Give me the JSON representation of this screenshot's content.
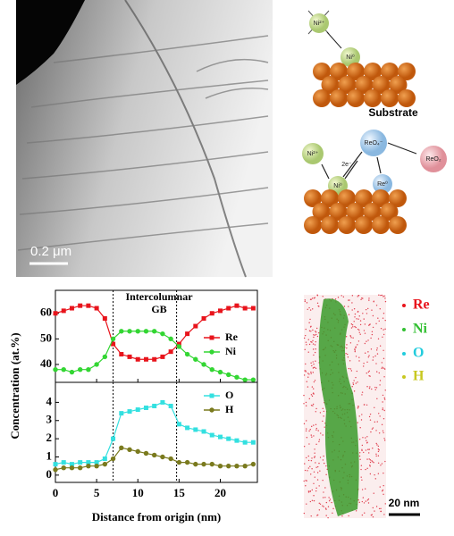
{
  "chart_data": [
    {
      "type": "line",
      "annotation": "Intercolumnar GB",
      "ylabel": "Concentration (at.%)",
      "x": [
        0,
        1,
        2,
        3,
        4,
        5,
        6,
        7,
        8,
        9,
        10,
        11,
        12,
        13,
        14,
        15,
        16,
        17,
        18,
        19,
        20,
        21,
        22,
        23,
        24
      ],
      "series": [
        {
          "name": "Re",
          "color": "#e8141c",
          "marker": "square",
          "values": [
            60,
            61,
            62,
            63,
            63,
            62,
            58,
            48,
            44,
            43,
            42,
            42,
            42,
            43,
            45,
            48,
            52,
            55,
            58,
            60,
            61,
            62,
            63,
            62,
            62
          ]
        },
        {
          "name": "Ni",
          "color": "#33d633",
          "marker": "circle",
          "values": [
            38,
            38,
            37,
            38,
            38,
            40,
            43,
            50,
            53,
            53,
            53,
            53,
            53,
            52,
            50,
            47,
            44,
            42,
            40,
            38,
            37,
            36,
            35,
            34,
            34
          ]
        }
      ],
      "xlim": [
        0,
        24.5
      ],
      "xticks": [
        0,
        5,
        10,
        15,
        20
      ],
      "ylim": [
        33,
        69
      ],
      "yticks": [
        40,
        50,
        60
      ],
      "vlines": [
        7,
        14.7
      ]
    },
    {
      "type": "line",
      "xlabel": "Distance from origin (nm)",
      "x": [
        0,
        1,
        2,
        3,
        4,
        5,
        6,
        7,
        8,
        9,
        10,
        11,
        12,
        13,
        14,
        15,
        16,
        17,
        18,
        19,
        20,
        21,
        22,
        23,
        24
      ],
      "series": [
        {
          "name": "O",
          "color": "#33e0e0",
          "marker": "square",
          "values": [
            0.6,
            0.7,
            0.6,
            0.7,
            0.7,
            0.7,
            0.9,
            2.0,
            3.4,
            3.5,
            3.6,
            3.7,
            3.8,
            4.0,
            3.8,
            2.8,
            2.6,
            2.5,
            2.4,
            2.2,
            2.1,
            2.0,
            1.9,
            1.8,
            1.8
          ]
        },
        {
          "name": "H",
          "color": "#7a7a1e",
          "marker": "circle",
          "values": [
            0.3,
            0.4,
            0.4,
            0.4,
            0.5,
            0.5,
            0.6,
            0.9,
            1.5,
            1.4,
            1.3,
            1.2,
            1.1,
            1.0,
            0.9,
            0.7,
            0.7,
            0.6,
            0.6,
            0.6,
            0.5,
            0.5,
            0.5,
            0.5,
            0.6
          ]
        }
      ],
      "xlim": [
        0,
        24.5
      ],
      "xticks": [
        0,
        5,
        10,
        15,
        20
      ],
      "ylim": [
        -0.4,
        5.1
      ],
      "yticks": [
        0,
        1,
        2,
        3,
        4
      ],
      "vlines": [
        7,
        14.7
      ]
    }
  ],
  "figure": {
    "scale_bar": "0.2 μm",
    "diagram": {
      "ni2_top": "Ni²⁺",
      "ni0_top": "Ni⁰",
      "substrate": "Substrate",
      "ni2": "Ni²⁺",
      "ni0": "Ni⁰",
      "electrons": "2e⁻",
      "reo4": "ReO₄⁻",
      "re0": "Re⁰",
      "reo2": "ReO₂"
    },
    "apt": {
      "legend": [
        "Re",
        "Ni",
        "O",
        "H"
      ],
      "scale_bar": "20 nm"
    }
  }
}
